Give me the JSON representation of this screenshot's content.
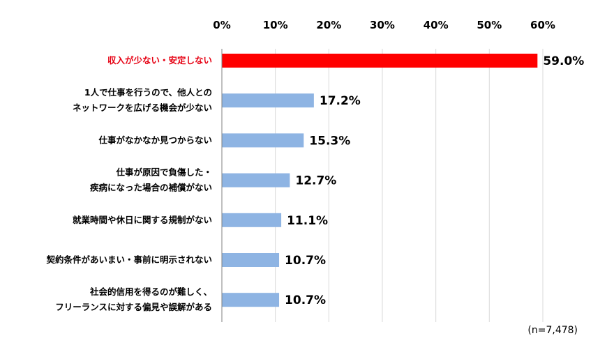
{
  "chart_data": {
    "type": "bar",
    "orientation": "horizontal",
    "categories": [
      [
        "収入が少ない・安定しない"
      ],
      [
        "1人で仕事を行うので、他人との",
        "ネットワークを広げる機会が少ない"
      ],
      [
        "仕事がなかなか見つからない"
      ],
      [
        "仕事が原因で負傷した・",
        "疾病になった場合の補償がない"
      ],
      [
        "就業時間や休日に関する規制がない"
      ],
      [
        "契約条件があいまい・事前に明示されない"
      ],
      [
        "社会的信用を得るのが難しく、",
        "フリーランスに対する偏見や誤解がある"
      ]
    ],
    "values": [
      59.0,
      17.2,
      15.3,
      12.7,
      11.1,
      10.7,
      10.7
    ],
    "value_labels": [
      "59.0%",
      "17.2%",
      "15.3%",
      "12.7%",
      "11.1%",
      "10.7%",
      "10.7%"
    ],
    "x_ticks": [
      "0%",
      "10%",
      "20%",
      "30%",
      "40%",
      "50%",
      "60%"
    ],
    "xlim": [
      0,
      60
    ],
    "x_axis_position": "top",
    "grid": true,
    "highlight_index": 0,
    "colors": {
      "highlight_bar": "#ff0000",
      "highlight_text": "#e60012",
      "bar": "#8eb4e3",
      "grid": "#d9d9d9",
      "axis": "#7f7f7f"
    },
    "note": "(n=7,478)"
  }
}
